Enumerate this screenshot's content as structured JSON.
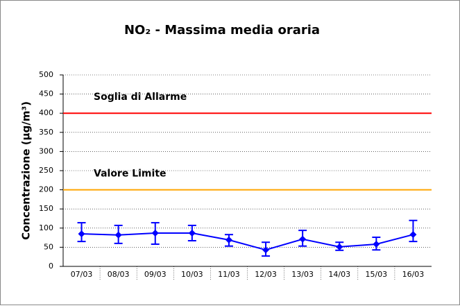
{
  "chart_data": {
    "type": "line",
    "title": "NO₂ - Massima media oraria",
    "y_label": "Concentrazione (µg/m³)",
    "categories": [
      "07/03",
      "08/03",
      "09/03",
      "10/03",
      "11/03",
      "12/03",
      "13/03",
      "14/03",
      "15/03",
      "16/03"
    ],
    "series": [
      {
        "color": "#0000ff",
        "values": [
          85,
          82,
          87,
          87,
          69,
          43,
          71,
          51,
          58,
          83
        ],
        "error_high": [
          29,
          25,
          27,
          20,
          14,
          20,
          23,
          12,
          18,
          37
        ],
        "error_low": [
          20,
          22,
          29,
          20,
          16,
          16,
          18,
          9,
          15,
          18
        ]
      }
    ],
    "reference_lines": [
      {
        "label": "Soglia di Allarme",
        "value": 400,
        "color": "#ff0000"
      },
      {
        "label": "Valore Limite",
        "value": 200,
        "color": "#ffa500"
      }
    ],
    "ylim": [
      0,
      500
    ],
    "yticks": [
      0,
      50,
      100,
      150,
      200,
      250,
      300,
      350,
      400,
      450,
      500
    ],
    "grid": true
  }
}
